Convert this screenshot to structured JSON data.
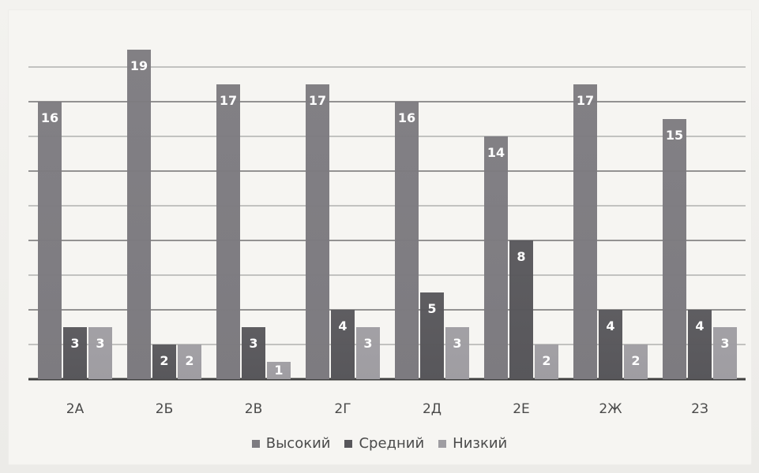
{
  "chart_data": {
    "type": "bar",
    "categories": [
      "2А",
      "2Б",
      "2В",
      "2Г",
      "2Д",
      "2Е",
      "2Ж",
      "2З"
    ],
    "series": [
      {
        "name": "Высокий",
        "values": [
          16,
          19,
          17,
          17,
          16,
          14,
          17,
          15
        ]
      },
      {
        "name": "Средний",
        "values": [
          3,
          2,
          3,
          4,
          5,
          8,
          4,
          4
        ]
      },
      {
        "name": "Низкий",
        "values": [
          3,
          2,
          1,
          3,
          3,
          2,
          2,
          3
        ]
      }
    ],
    "title": "",
    "xlabel": "",
    "ylabel": "",
    "ylim": [
      0,
      19
    ],
    "grid": true,
    "legend_placement": "bottom",
    "colors": {
      "Высокий": "#7d7b80",
      "Средний": "#58575b",
      "Низкий": "#9f9da2",
      "grid": "#5a5a5a",
      "axis": "#3f3f3f",
      "label": "#ffffff"
    }
  }
}
